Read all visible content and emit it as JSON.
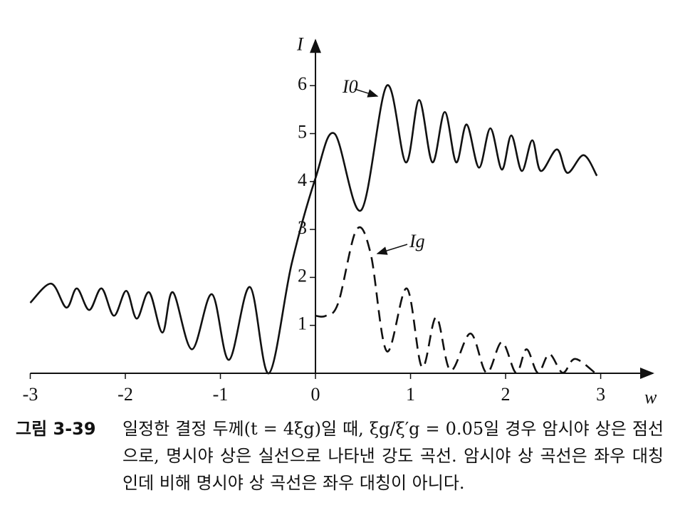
{
  "chart_data": {
    "type": "line",
    "x_label": "w",
    "y_label": "I",
    "xlim": [
      -3,
      3.55
    ],
    "ylim": [
      0,
      6.95
    ],
    "xticks": [
      -3,
      -2,
      -1,
      0,
      1,
      2,
      3
    ],
    "yticks": [
      1,
      2,
      3,
      4,
      5,
      6
    ],
    "series": [
      {
        "name": "I0",
        "color": "#111111",
        "dash": false,
        "x": [
          -3,
          -2.78,
          -2.62,
          -2.51,
          -2.38,
          -2.25,
          -2.12,
          -1.99,
          -1.88,
          -1.75,
          -1.61,
          -1.5,
          -1.3,
          -1.09,
          -0.91,
          -0.69,
          -0.49,
          -0.25,
          0,
          0.2,
          0.48,
          0.75,
          0.95,
          1.09,
          1.23,
          1.36,
          1.48,
          1.59,
          1.72,
          1.84,
          1.96,
          2.06,
          2.17,
          2.28,
          2.37,
          2.54,
          2.65,
          2.82,
          2.96
        ],
        "values": [
          1.47,
          1.87,
          1.37,
          1.77,
          1.32,
          1.77,
          1.2,
          1.72,
          1.14,
          1.69,
          0.85,
          1.69,
          0.5,
          1.65,
          0.28,
          1.8,
          0.0,
          2.29,
          4.07,
          5.0,
          3.4,
          6.0,
          4.4,
          5.7,
          4.4,
          5.45,
          4.4,
          5.19,
          4.29,
          5.11,
          4.25,
          4.96,
          4.22,
          4.86,
          4.22,
          4.67,
          4.18,
          4.55,
          4.12
        ]
      },
      {
        "name": "Ig",
        "color": "#111111",
        "dash": true,
        "x": [
          0,
          0.11,
          0.24,
          0.43,
          0.58,
          0.75,
          0.96,
          1.12,
          1.27,
          1.42,
          1.63,
          1.8,
          1.96,
          2.11,
          2.22,
          2.34,
          2.46,
          2.6,
          2.73,
          2.94
        ],
        "values": [
          1.2,
          1.2,
          1.47,
          2.99,
          2.5,
          0.46,
          1.77,
          0.13,
          1.17,
          0.06,
          0.83,
          0.01,
          0.65,
          0.01,
          0.5,
          0.01,
          0.4,
          0.01,
          0.3,
          0.01
        ]
      }
    ]
  },
  "caption": {
    "label": "그림 3-39",
    "text": "일정한 결정 두께(t = 4ξg)일 때, ξg/ξ′g = 0.05일 경우 암시야 상은 점선으로, 명시야 상은 실선으로 나타낸 강도 곡선. 암시야 상 곡선은 좌우 대칭인데 비해 명시야 상 곡선은 좌우 대칭이 아니다."
  }
}
